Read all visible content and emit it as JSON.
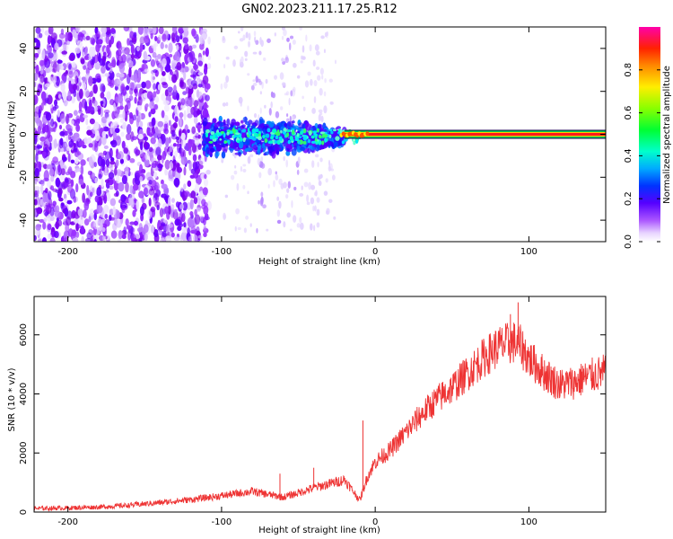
{
  "title": "GN02.2023.211.17.25.R12",
  "colors": {
    "snr_line": "#ee3333",
    "frame": "#000000"
  },
  "chart_data": [
    {
      "type": "heatmap",
      "xlabel": "Height of straight line (km)",
      "ylabel": "Frequency (Hz)",
      "xlim": [
        -222,
        150
      ],
      "ylim": [
        -50,
        50
      ],
      "xticks": [
        -200,
        -100,
        0,
        100
      ],
      "yticks": [
        -40,
        -20,
        0,
        20,
        40
      ],
      "colorbar": {
        "label": "Normalized spectral amplitude",
        "range": [
          0,
          1
        ],
        "ticks": [
          "0.0",
          "0.2",
          "0.4",
          "0.6",
          "0.8"
        ],
        "ticks_values": [
          0,
          0.2,
          0.4,
          0.6,
          0.8
        ]
      },
      "regions": [
        {
          "desc": "broadband noise",
          "x": [
            -222,
            -108
          ],
          "y": [
            -50,
            50
          ],
          "amplitude": 0.15
        },
        {
          "desc": "scattered noise",
          "x": [
            -100,
            -25
          ],
          "y": [
            -45,
            50
          ],
          "amplitude": 0.08
        },
        {
          "desc": "signal cloud",
          "x": [
            -112,
            -20
          ],
          "y": [
            -10,
            8
          ],
          "amplitude": 0.3
        },
        {
          "desc": "narrowband tone",
          "x": [
            -20,
            150
          ],
          "y": [
            -1.5,
            1.5
          ],
          "amplitude": 1.0
        }
      ]
    },
    {
      "type": "line",
      "xlabel": "Height of straight line (km)",
      "ylabel": "SNR (10 * v/v)",
      "xlim": [
        -222,
        150
      ],
      "ylim": [
        0,
        7300
      ],
      "xticks": [
        -200,
        -100,
        0,
        100
      ],
      "yticks": [
        0,
        2000,
        4000,
        6000
      ],
      "series": [
        {
          "x": [
            -222,
            -200,
            -180,
            -160,
            -140,
            -120,
            -100,
            -80,
            -60,
            -50,
            -40,
            -30,
            -20,
            -10,
            -5,
            0,
            10,
            20,
            30,
            40,
            50,
            60,
            70,
            80,
            90,
            95,
            100,
            110,
            120,
            130,
            140,
            150
          ],
          "y": [
            120,
            140,
            170,
            230,
            320,
            420,
            550,
            700,
            500,
            650,
            820,
            950,
            1100,
            400,
            1200,
            1700,
            2100,
            2700,
            3300,
            3800,
            4200,
            4700,
            5200,
            5600,
            5750,
            5600,
            5200,
            4700,
            4300,
            4400,
            4600,
            4750
          ]
        }
      ]
    }
  ]
}
